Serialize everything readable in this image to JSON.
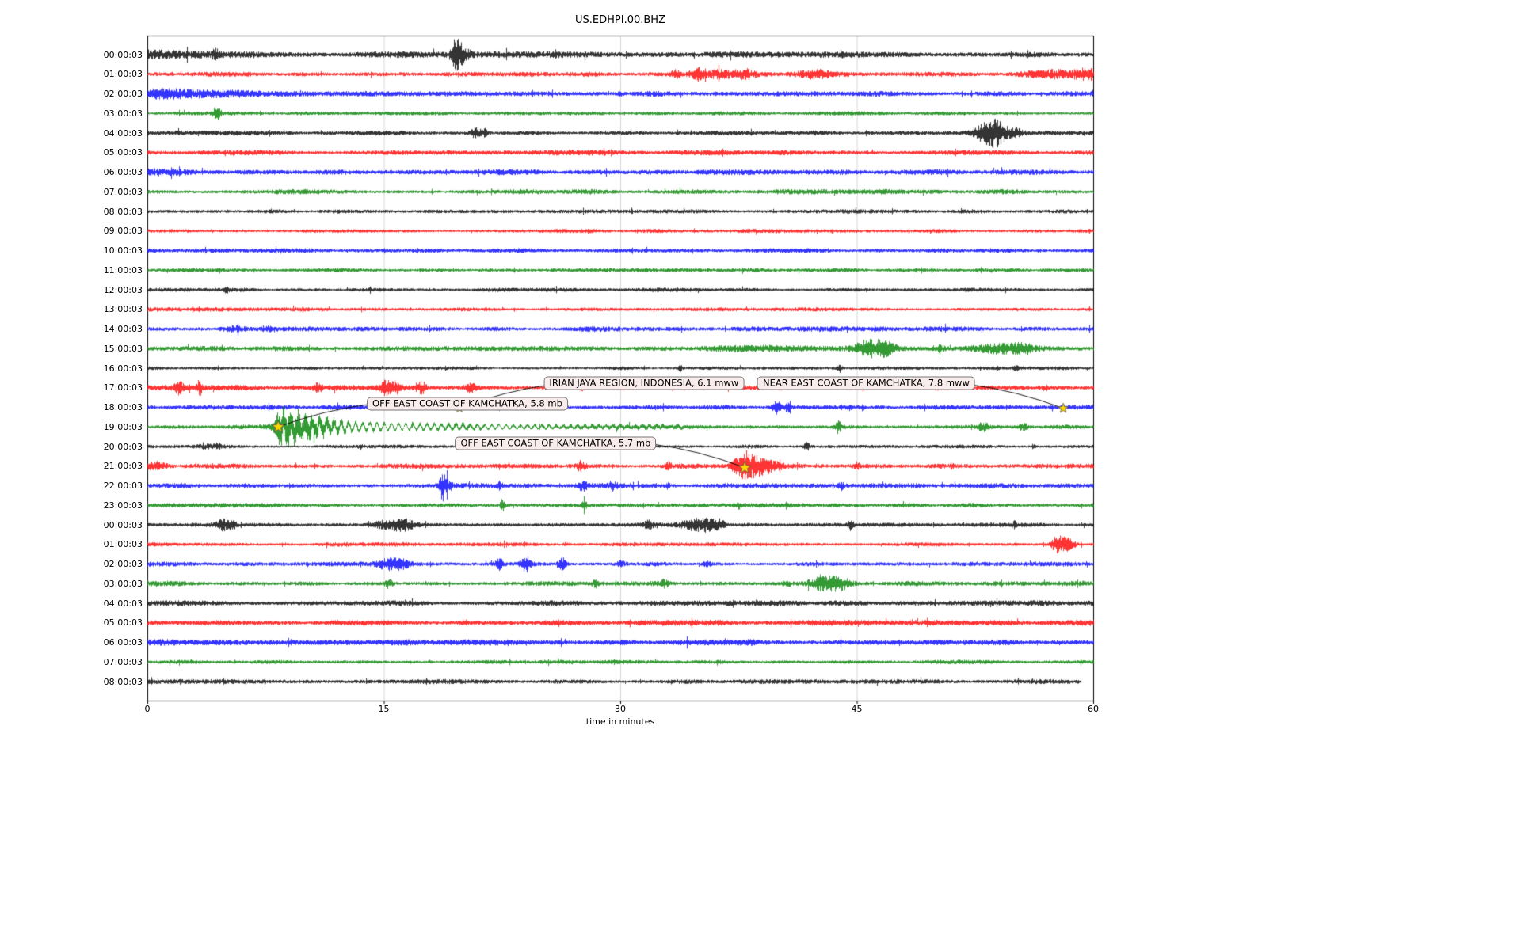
{
  "chart_data": {
    "type": "line",
    "title": "US.EDHPI.00.BHZ",
    "xlabel": "time in minutes",
    "x_ticks": [
      0,
      15,
      30,
      45,
      60
    ],
    "x_range": [
      0,
      60
    ],
    "colors": {
      "black": "#000000",
      "red": "#ff0000",
      "blue": "#0000ff",
      "green": "#008000",
      "grid": "#cccccc",
      "star_fill": "#ffd700",
      "annotation_bg": "#f9ecec",
      "annotation_border": "#777777"
    },
    "annotations": [
      {
        "text": "IRIAN JAYA REGION, INDONESIA, 6.1 mww",
        "box_minute": 31.5,
        "box_row": 16.77,
        "target_minute": 19.8,
        "target_row": 18.05,
        "rad": 0.12,
        "star_size": 5.5
      },
      {
        "text": "NEAR EAST COAST OF KAMCHATKA, 7.8 mww",
        "box_minute": 45.6,
        "box_row": 16.77,
        "target_minute": 58.1,
        "target_row": 18.05,
        "rad": -0.12,
        "star_size": 6.5
      },
      {
        "text": "OFF EAST COAST OF KAMCHATKA, 5.8 mb",
        "box_minute": 20.3,
        "box_row": 17.82,
        "target_minute": 8.3,
        "target_row": 19.0,
        "rad": 0.12,
        "star_size": 8
      },
      {
        "text": "OFF EAST COAST OF KAMCHATKA, 5.7 mb",
        "box_minute": 25.9,
        "box_row": 19.82,
        "target_minute": 37.9,
        "target_row": 21.08,
        "rad": -0.12,
        "star_size": 8
      }
    ],
    "rows": [
      {
        "label": "00:00:03",
        "color": "#000000",
        "base": 2.6,
        "events": [
          [
            1.5,
            2.2,
            2.2
          ],
          [
            4.3,
            0.12,
            5
          ],
          [
            19.55,
            0.22,
            12
          ],
          [
            19.95,
            0.35,
            7
          ],
          [
            44,
            0.08,
            2.5
          ]
        ]
      },
      {
        "label": "01:00:03",
        "color": "#ff0000",
        "base": 2.1,
        "events": [
          [
            33.5,
            0.18,
            4.5
          ],
          [
            34.8,
            0.25,
            5.5
          ],
          [
            36.3,
            1.0,
            3.5
          ],
          [
            38,
            0.4,
            3
          ],
          [
            42.3,
            0.7,
            3.5
          ],
          [
            57.8,
            1.4,
            3.2
          ],
          [
            59.4,
            0.4,
            3
          ]
        ]
      },
      {
        "label": "02:00:03",
        "color": "#0000ff",
        "base": 2.4,
        "events": [
          [
            1.2,
            1.8,
            3
          ],
          [
            4.5,
            1.2,
            2
          ],
          [
            30,
            0.1,
            2
          ]
        ]
      },
      {
        "label": "03:00:03",
        "color": "#008000",
        "base": 1.7,
        "events": [
          [
            4.4,
            0.15,
            6.5
          ]
        ]
      },
      {
        "label": "04:00:03",
        "color": "#000000",
        "base": 2.1,
        "events": [
          [
            20.8,
            0.25,
            4.5
          ],
          [
            21.4,
            0.15,
            3.5
          ],
          [
            52.9,
            0.4,
            6
          ],
          [
            53.6,
            0.35,
            11
          ],
          [
            54.2,
            0.3,
            7
          ],
          [
            55,
            0.3,
            4
          ]
        ]
      },
      {
        "label": "05:00:03",
        "color": "#ff0000",
        "base": 2.3,
        "events": []
      },
      {
        "label": "06:00:03",
        "color": "#0000ff",
        "base": 2.5,
        "events": [
          [
            1,
            1.5,
            1.2
          ]
        ]
      },
      {
        "label": "07:00:03",
        "color": "#008000",
        "base": 2.2,
        "events": []
      },
      {
        "label": "08:00:03",
        "color": "#000000",
        "base": 1.7,
        "events": []
      },
      {
        "label": "09:00:03",
        "color": "#ff0000",
        "base": 1.7,
        "events": []
      },
      {
        "label": "10:00:03",
        "color": "#0000ff",
        "base": 1.9,
        "events": []
      },
      {
        "label": "11:00:03",
        "color": "#008000",
        "base": 1.7,
        "events": []
      },
      {
        "label": "12:00:03",
        "color": "#000000",
        "base": 1.7,
        "events": [
          [
            5,
            0.1,
            2.5
          ]
        ]
      },
      {
        "label": "13:00:03",
        "color": "#ff0000",
        "base": 1.7,
        "events": []
      },
      {
        "label": "14:00:03",
        "color": "#0000ff",
        "base": 2.1,
        "events": [
          [
            5.5,
            0.5,
            2.5
          ],
          [
            7.6,
            0.35,
            2.2
          ],
          [
            30,
            2,
            0.8
          ]
        ]
      },
      {
        "label": "15:00:03",
        "color": "#008000",
        "base": 2.2,
        "events": [
          [
            38.5,
            1.8,
            1.8
          ],
          [
            45.8,
            0.7,
            8
          ],
          [
            46.9,
            0.45,
            4.5
          ],
          [
            50.2,
            0.25,
            2.5
          ],
          [
            54,
            1.0,
            4.5
          ],
          [
            55.6,
            0.5,
            3.5
          ]
        ]
      },
      {
        "label": "16:00:03",
        "color": "#000000",
        "base": 1.5,
        "events": [
          [
            33.8,
            0.08,
            3.5
          ],
          [
            43.9,
            0.1,
            4.5
          ],
          [
            55.1,
            0.08,
            2.5
          ]
        ]
      },
      {
        "label": "17:00:03",
        "color": "#ff0000",
        "base": 2.4,
        "events": [
          [
            2,
            0.18,
            5.5
          ],
          [
            3.3,
            0.12,
            6.5
          ],
          [
            10.8,
            0.18,
            3.5
          ],
          [
            15.1,
            0.22,
            6.5
          ],
          [
            15.7,
            0.18,
            5.5
          ],
          [
            17.4,
            0.18,
            5.5
          ],
          [
            20.5,
            0.25,
            3.5
          ],
          [
            27.6,
            0.12,
            3.5
          ]
        ]
      },
      {
        "label": "18:00:03",
        "color": "#0000ff",
        "base": 2.3,
        "events": [
          [
            39.9,
            0.18,
            5.5
          ],
          [
            40.6,
            0.12,
            4.5
          ],
          [
            44.5,
            0.08,
            2.5
          ]
        ]
      },
      {
        "label": "19:00:03",
        "color": "#008000",
        "base": 2.1,
        "events": [
          [
            8.35,
            0.22,
            10
          ],
          [
            8.9,
            0.45,
            8.5
          ],
          [
            9.7,
            0.7,
            6.5
          ],
          [
            11,
            1.1,
            4.5
          ],
          [
            43.8,
            0.12,
            5.5
          ],
          [
            53,
            0.25,
            3.5
          ],
          [
            55.6,
            0.18,
            2.8
          ]
        ],
        "ring": {
          "t0": 8.3,
          "amp": 7.5,
          "decay": 0.08,
          "freq": 2.2,
          "dur": 26
        }
      },
      {
        "label": "20:00:03",
        "color": "#000000",
        "base": 1.6,
        "events": [
          [
            4,
            0.7,
            1.8
          ],
          [
            13.5,
            0.08,
            2.2
          ],
          [
            41.8,
            0.1,
            5.5
          ],
          [
            56.2,
            0.08,
            2.5
          ]
        ]
      },
      {
        "label": "21:00:03",
        "color": "#ff0000",
        "base": 2.1,
        "events": [
          [
            0.5,
            0.45,
            3.5
          ],
          [
            27.5,
            0.18,
            4.5
          ],
          [
            33,
            0.18,
            3.5
          ],
          [
            37.3,
            0.25,
            6
          ],
          [
            37.95,
            0.3,
            12
          ],
          [
            38.6,
            0.45,
            7
          ],
          [
            39.4,
            0.55,
            4.5
          ],
          [
            45,
            0.12,
            2.8
          ],
          [
            51,
            0.08,
            2.5
          ]
        ]
      },
      {
        "label": "22:00:03",
        "color": "#0000ff",
        "base": 2.3,
        "events": [
          [
            18.7,
            0.12,
            11
          ],
          [
            18.95,
            0.25,
            5
          ],
          [
            22.3,
            0.12,
            4.5
          ],
          [
            27.6,
            0.18,
            4.5
          ],
          [
            29.5,
            0.18,
            3.5
          ],
          [
            33,
            0.08,
            2.5
          ],
          [
            44,
            0.12,
            3.5
          ]
        ]
      },
      {
        "label": "23:00:03",
        "color": "#008000",
        "base": 1.9,
        "events": [
          [
            22.5,
            0.1,
            6
          ],
          [
            27.7,
            0.12,
            3.5
          ],
          [
            37.5,
            0.08,
            2.5
          ]
        ]
      },
      {
        "label": "00:00:03",
        "color": "#000000",
        "base": 1.9,
        "events": [
          [
            4.8,
            0.25,
            4.5
          ],
          [
            5.4,
            0.18,
            3.5
          ],
          [
            15.3,
            0.7,
            4.5
          ],
          [
            16.4,
            0.5,
            4
          ],
          [
            31.8,
            0.25,
            3.5
          ],
          [
            34.6,
            0.5,
            4.5
          ],
          [
            35.6,
            0.45,
            5.5
          ],
          [
            36.3,
            0.25,
            3.5
          ],
          [
            44.6,
            0.12,
            4.5
          ],
          [
            55,
            0.08,
            2.5
          ]
        ]
      },
      {
        "label": "01:00:03",
        "color": "#ff0000",
        "base": 1.8,
        "events": [
          [
            26.5,
            0.08,
            2.2
          ],
          [
            57.7,
            0.25,
            7
          ],
          [
            58.3,
            0.35,
            5.5
          ]
        ]
      },
      {
        "label": "02:00:03",
        "color": "#0000ff",
        "base": 2.0,
        "events": [
          [
            15.2,
            0.45,
            4.5
          ],
          [
            16.1,
            0.35,
            3.5
          ],
          [
            22.3,
            0.18,
            5.5
          ],
          [
            24,
            0.2,
            7
          ],
          [
            26.3,
            0.18,
            6
          ],
          [
            30,
            0.25,
            2.8
          ],
          [
            35.5,
            0.18,
            2.8
          ]
        ]
      },
      {
        "label": "03:00:03",
        "color": "#008000",
        "base": 2.1,
        "events": [
          [
            15.3,
            0.18,
            4.5
          ],
          [
            28.4,
            0.18,
            2.8
          ],
          [
            32.8,
            0.18,
            3
          ],
          [
            40.5,
            0.25,
            2.8
          ],
          [
            42.8,
            0.6,
            6
          ],
          [
            43.9,
            0.45,
            4.5
          ]
        ]
      },
      {
        "label": "04:00:03",
        "color": "#000000",
        "base": 2.5,
        "events": []
      },
      {
        "label": "05:00:03",
        "color": "#ff0000",
        "base": 2.4,
        "events": []
      },
      {
        "label": "06:00:03",
        "color": "#0000ff",
        "base": 2.6,
        "events": [
          [
            1,
            1.2,
            1.2
          ]
        ]
      },
      {
        "label": "07:00:03",
        "color": "#008000",
        "base": 1.8,
        "events": []
      },
      {
        "label": "08:00:03",
        "color": "#000000",
        "base": 2.0,
        "end": 59.2,
        "events": []
      }
    ]
  }
}
